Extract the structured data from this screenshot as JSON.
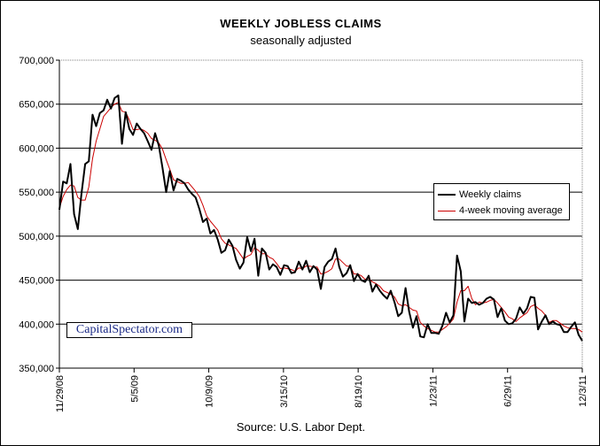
{
  "chart_data": {
    "type": "line",
    "title": "WEEKLY JOBLESS CLAIMS",
    "subtitle": "seasonally adjusted",
    "source": "Source: U.S. Labor Dept.",
    "watermark": "CapitalSpectator.com",
    "ylim": [
      350000,
      700000
    ],
    "y_ticks": [
      {
        "value": 350000,
        "label": "350,000"
      },
      {
        "value": 400000,
        "label": "400,000"
      },
      {
        "value": 450000,
        "label": "450,000"
      },
      {
        "value": 500000,
        "label": "500,000"
      },
      {
        "value": 550000,
        "label": "550,000"
      },
      {
        "value": 600000,
        "label": "600,000"
      },
      {
        "value": 650000,
        "label": "650,000"
      },
      {
        "value": 700000,
        "label": "700,000"
      }
    ],
    "x_ticks": [
      "11/29/08",
      "5/5/09",
      "10/9/09",
      "3/15/10",
      "8/19/10",
      "1/23/11",
      "6/29/11",
      "12/3/11"
    ],
    "legend": {
      "position": "right",
      "entries": [
        "Weekly claims",
        "4-week moving average"
      ]
    },
    "grid": true,
    "colors": {
      "weekly": "#000000",
      "average": "#cc0000",
      "grid": "#000000"
    },
    "series": [
      {
        "name": "Weekly claims",
        "values": [
          530000,
          562000,
          560000,
          582000,
          525000,
          508000,
          548000,
          582000,
          585000,
          638000,
          625000,
          640000,
          643000,
          655000,
          645000,
          657000,
          660000,
          605000,
          641000,
          622000,
          615000,
          628000,
          622000,
          617000,
          608000,
          598000,
          617000,
          603000,
          578000,
          550000,
          574000,
          552000,
          565000,
          563000,
          560000,
          553000,
          548000,
          544000,
          531000,
          516000,
          520000,
          503000,
          507000,
          496000,
          481000,
          484000,
          496000,
          489000,
          473000,
          463000,
          470000,
          499000,
          483000,
          497000,
          455000,
          486000,
          481000,
          462000,
          468000,
          465000,
          456000,
          467000,
          466000,
          458000,
          459000,
          471000,
          462000,
          472000,
          459000,
          466000,
          462000,
          440000,
          465000,
          471000,
          474000,
          486000,
          465000,
          454000,
          458000,
          467000,
          449000,
          457000,
          450000,
          448000,
          455000,
          437000,
          445000,
          438000,
          433000,
          429000,
          438000,
          425000,
          409000,
          413000,
          441000,
          414000,
          396000,
          409000,
          386000,
          385000,
          400000,
          390000,
          390000,
          389000,
          398000,
          413000,
          402000,
          410000,
          478000,
          460000,
          403000,
          429000,
          424000,
          425000,
          422000,
          424000,
          429000,
          431000,
          428000,
          408000,
          418000,
          404000,
          400000,
          401000,
          406000,
          419000,
          412000,
          418000,
          431000,
          430000,
          394000,
          403000,
          410000,
          400000,
          403000,
          400000,
          399000,
          391000,
          391000,
          397000,
          402000,
          388000,
          381000
        ]
      },
      {
        "name": "4-week moving average",
        "values": [
          532000,
          545000,
          553000,
          558000,
          557000,
          544000,
          541000,
          541000,
          556000,
          588000,
          608000,
          622000,
          636000,
          641000,
          646000,
          650000,
          652000,
          642000,
          641000,
          632000,
          621000,
          621000,
          622000,
          620000,
          617000,
          611000,
          609000,
          606000,
          599000,
          587000,
          576000,
          564000,
          562000,
          560000,
          560000,
          561000,
          556000,
          551000,
          545000,
          535000,
          523000,
          517000,
          512000,
          507000,
          497000,
          492000,
          490000,
          488000,
          486000,
          480000,
          474000,
          477000,
          479000,
          487000,
          484000,
          480000,
          480000,
          476000,
          474000,
          469000,
          463000,
          464000,
          463000,
          462000,
          460000,
          464000,
          463000,
          466000,
          466000,
          465000,
          465000,
          457000,
          458000,
          460000,
          463000,
          474000,
          474000,
          470000,
          466000,
          466000,
          457000,
          457000,
          455000,
          451000,
          452000,
          448000,
          446000,
          443000,
          438000,
          436000,
          434000,
          431000,
          423000,
          421000,
          422000,
          419000,
          416000,
          415000,
          402000,
          398000,
          395000,
          393000,
          391000,
          391000,
          394000,
          397000,
          401000,
          406000,
          425000,
          438000,
          438000,
          443000,
          429000,
          422000,
          425000,
          424000,
          425000,
          427000,
          428000,
          424000,
          419000,
          414000,
          408000,
          406000,
          403000,
          407000,
          410000,
          413000,
          420000,
          422000,
          418000,
          415000,
          410000,
          402000,
          404000,
          404000,
          401000,
          398000,
          396000,
          395000,
          395000,
          394000,
          391000
        ]
      }
    ]
  }
}
